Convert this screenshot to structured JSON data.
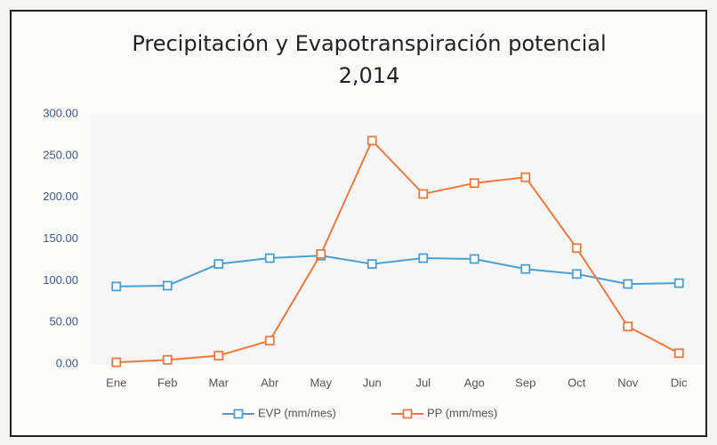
{
  "chart_data": {
    "type": "line",
    "title": "Precipitación y Evapotranspiración potencial",
    "subtitle": "2,014",
    "categories": [
      "Ene",
      "Feb",
      "Mar",
      "Abr",
      "May",
      "Jun",
      "Jul",
      "Ago",
      "Sep",
      "Oct",
      "Nov",
      "Dic"
    ],
    "series": [
      {
        "name": "EVP (mm/mes)",
        "color": "#4a9fd4",
        "values": [
          93,
          94,
          120,
          127,
          130,
          120,
          127,
          126,
          114,
          108,
          96,
          97
        ]
      },
      {
        "name": "PP (mm/mes)",
        "color": "#f0783c",
        "values": [
          2,
          5,
          10,
          28,
          132,
          268,
          204,
          217,
          224,
          139,
          45,
          13
        ]
      }
    ],
    "ylim": [
      0,
      300
    ],
    "yticks": [
      {
        "value": 0,
        "label": "0.00"
      },
      {
        "value": 50,
        "label": "50.00"
      },
      {
        "value": 100,
        "label": "100.00"
      },
      {
        "value": 150,
        "label": "150.00"
      },
      {
        "value": 200,
        "label": "200.00"
      },
      {
        "value": 250,
        "label": "250.00"
      },
      {
        "value": 300,
        "label": "300.00"
      }
    ],
    "grid": false,
    "legend": "bottom"
  }
}
